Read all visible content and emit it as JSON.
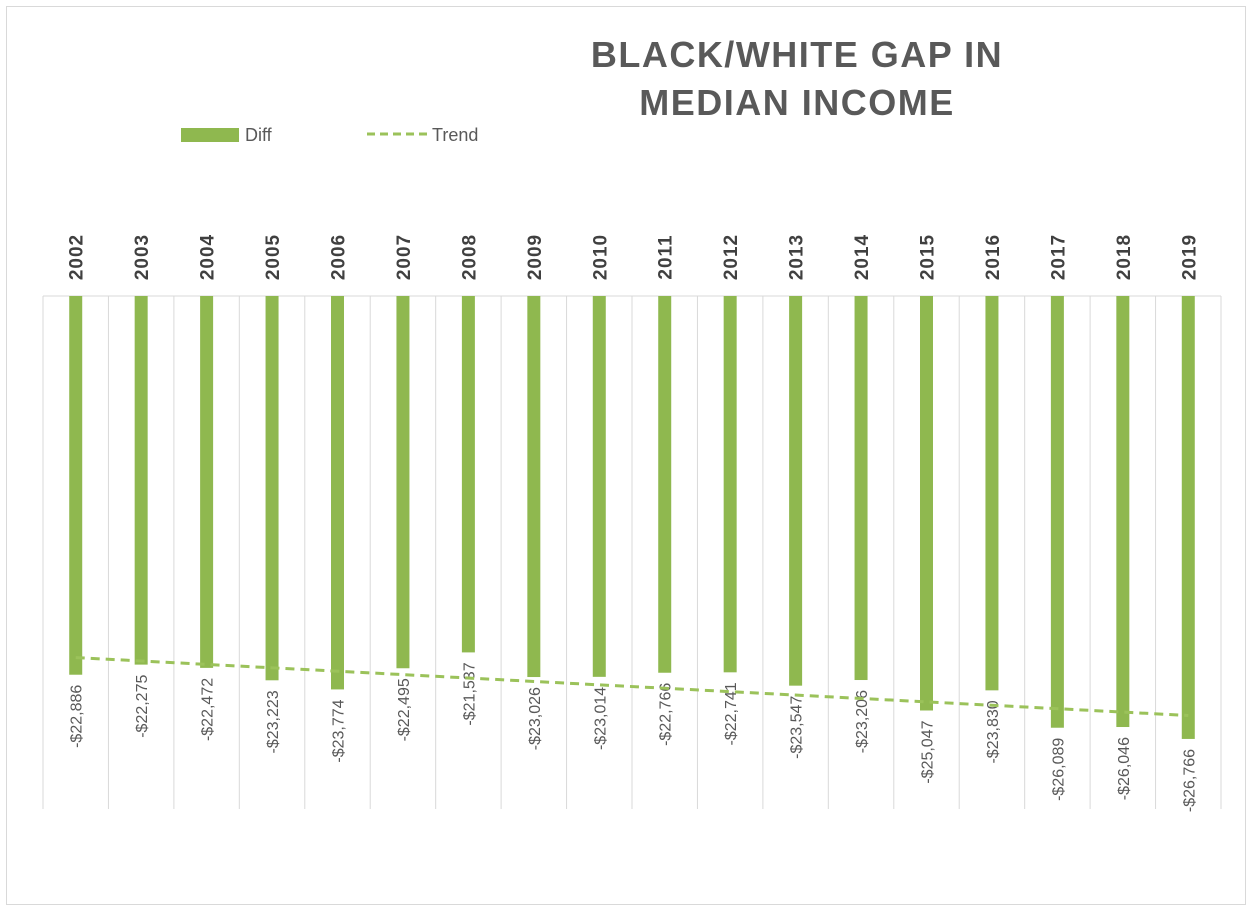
{
  "colors": {
    "bar": "#8fb84f",
    "trend": "#9bc25a",
    "grid": "#d9d9d9",
    "text": "#595959"
  },
  "chart_data": {
    "type": "bar",
    "title_lines": [
      "BLACK/WHITE GAP IN",
      "MEDIAN INCOME"
    ],
    "legend": {
      "position": "top-left",
      "entries": [
        {
          "label": "Diff",
          "kind": "bar"
        },
        {
          "label": "Trend",
          "kind": "dashed-line"
        }
      ]
    },
    "categories": [
      "2002",
      "2003",
      "2004",
      "2005",
      "2006",
      "2007",
      "2008",
      "2009",
      "2010",
      "2011",
      "2012",
      "2013",
      "2014",
      "2015",
      "2016",
      "2017",
      "2018",
      "2019"
    ],
    "series": [
      {
        "name": "Diff",
        "values": [
          -22886,
          -22275,
          -22472,
          -23223,
          -23774,
          -22495,
          -21537,
          -23026,
          -23014,
          -22766,
          -22741,
          -23547,
          -23206,
          -25047,
          -23830,
          -26089,
          -26046,
          -26766
        ],
        "labels": [
          "-$22,886",
          "-$22,275",
          "-$22,472",
          "-$23,223",
          "-$23,774",
          "-$22,495",
          "-$21,537",
          "-$23,026",
          "-$23,014",
          "-$22,766",
          "-$22,741",
          "-$23,547",
          "-$23,206",
          "-$25,047",
          "-$23,830",
          "-$26,089",
          "-$26,046",
          "-$26,766"
        ]
      }
    ],
    "trend": {
      "name": "Trend",
      "start": -21850,
      "end": -25350
    },
    "ylim": [
      -31000,
      0
    ],
    "category_axis_position": "top",
    "grid": "vertical"
  }
}
